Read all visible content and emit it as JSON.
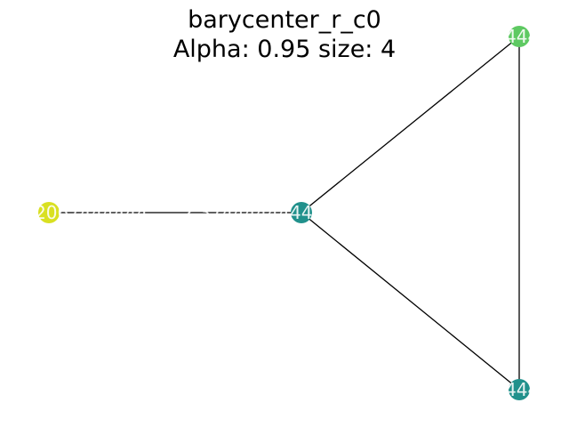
{
  "title": {
    "line1": "barycenter_r_c0",
    "line2": "Alpha: 0.95 size: 4"
  },
  "graph": {
    "nodes": [
      {
        "id": "n0",
        "label": "0.5444444444333354",
        "color": "#5ec962"
      },
      {
        "id": "n1",
        "label": "2.3744444444444451e-09",
        "color": "#21918c"
      },
      {
        "id": "n2",
        "label": "0.8333382067444444",
        "color": "#d9e021"
      },
      {
        "id": "n3",
        "label": "2.3744444444444444",
        "color": "#21918c"
      }
    ],
    "edges": [
      {
        "source": "n0",
        "target": "n1"
      },
      {
        "source": "n0",
        "target": "n3"
      },
      {
        "source": "n1",
        "target": "n3"
      },
      {
        "source": "n1",
        "target": "n2"
      }
    ]
  }
}
